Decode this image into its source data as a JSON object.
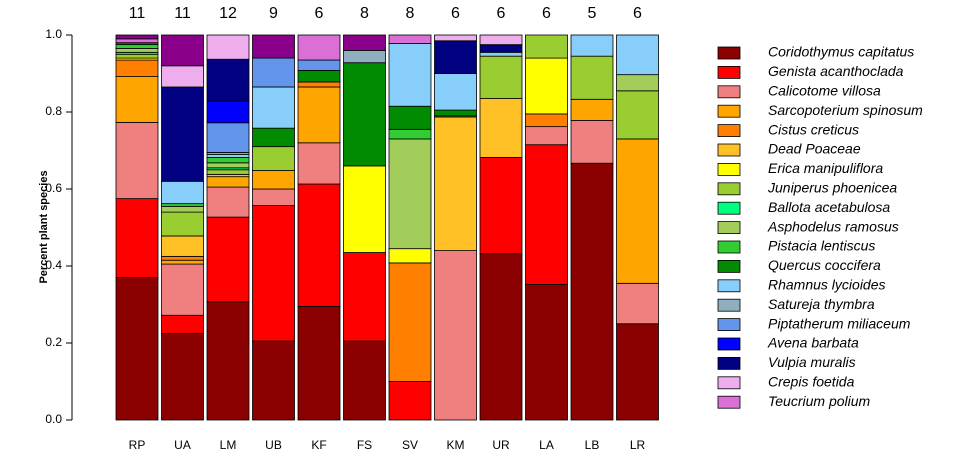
{
  "chart_data": {
    "type": "stacked_bar",
    "ylabel": "Percent plant species",
    "categories": [
      "RP",
      "UA",
      "LM",
      "UB",
      "KF",
      "FS",
      "SV",
      "KM",
      "UR",
      "LA",
      "LB",
      "LR"
    ],
    "top_labels": [
      "11",
      "11",
      "12",
      "9",
      "6",
      "8",
      "8",
      "6",
      "6",
      "6",
      "5",
      "6"
    ],
    "ylim": [
      0,
      1
    ],
    "yticks": [
      {
        "value": 0,
        "label": "0.0"
      },
      0.2,
      0.4,
      0.6,
      0.8,
      {
        "value": 1,
        "label": "1.0"
      }
    ],
    "series": [
      {
        "name": "Coridothymus capitatus",
        "color": "#8B0000",
        "values": [
          0.37,
          0.225,
          0.307,
          0.205,
          0.295,
          0.205,
          0,
          0,
          0.432,
          0.352,
          0.667,
          0.25
        ]
      },
      {
        "name": "Genista acanthoclada",
        "color": "#FF0000",
        "values": [
          0.205,
          0.047,
          0.22,
          0.352,
          0.318,
          0.23,
          0.1,
          0,
          0.25,
          0.363,
          0,
          0
        ]
      },
      {
        "name": "Calicotome villosa",
        "color": "#F08080",
        "values": [
          0.198,
          0.133,
          0.078,
          0.043,
          0.107,
          0,
          0,
          0.44,
          0,
          0.047,
          0.111,
          0.105
        ]
      },
      {
        "name": "Sarcopoterium spinosum",
        "color": "#FFA500",
        "values": [
          0.119,
          0.01,
          0.027,
          0.048,
          0.145,
          0,
          0,
          0,
          0,
          0,
          0.055,
          0.375
        ]
      },
      {
        "name": "Cistus creticus",
        "color": "#FF7F00",
        "values": [
          0.043,
          0.01,
          0,
          0,
          0.013,
          0,
          0.308,
          0,
          0,
          0.033,
          0,
          0
        ]
      },
      {
        "name": "Dead Poaceae",
        "color": "#FFC125",
        "values": [
          0,
          0.053,
          0.006,
          0,
          0,
          0,
          0,
          0.347,
          0.153,
          0,
          0,
          0
        ]
      },
      {
        "name": "Erica manipuliflora",
        "color": "#FFFF00",
        "values": [
          0.005,
          0,
          0,
          0,
          0,
          0.225,
          0.037,
          0,
          0,
          0.145,
          0,
          0
        ]
      },
      {
        "name": "Juniperus phoenicea",
        "color": "#9ACD32",
        "values": [
          0.01,
          0.062,
          0.012,
          0.062,
          0,
          0,
          0,
          0.003,
          0.11,
          0.06,
          0.112,
          0.125
        ]
      },
      {
        "name": "Ballota acetabulosa",
        "color": "#00FF7F",
        "values": [
          0.005,
          0,
          0.005,
          0,
          0,
          0,
          0,
          0,
          0,
          0,
          0,
          0
        ]
      },
      {
        "name": "Asphodelus ramosus",
        "color": "#A2CD5A",
        "values": [
          0.01,
          0.015,
          0.013,
          0,
          0,
          0,
          0.285,
          0,
          0,
          0,
          0,
          0.042
        ]
      },
      {
        "name": "Pistacia lentiscus",
        "color": "#32CD32",
        "values": [
          0.01,
          0.007,
          0.014,
          0,
          0,
          0,
          0.025,
          0,
          0,
          0,
          0,
          0
        ]
      },
      {
        "name": "Quercus coccifera",
        "color": "#008B00",
        "values": [
          0.005,
          0,
          0,
          0.048,
          0.03,
          0.268,
          0.06,
          0.015,
          0,
          0,
          0,
          0
        ]
      },
      {
        "name": "Rhamnus lycioides",
        "color": "#87CEFA",
        "values": [
          0,
          0.058,
          0.008,
          0.107,
          0,
          0,
          0.163,
          0.095,
          0.01,
          0,
          0.055,
          0.103
        ]
      },
      {
        "name": "Satureja thymbra",
        "color": "#8FAFBF",
        "values": [
          0,
          0,
          0.005,
          0,
          0,
          0.032,
          0,
          0,
          0,
          0,
          0,
          0
        ]
      },
      {
        "name": "Piptatherum miliaceum",
        "color": "#6495ED",
        "values": [
          0,
          0,
          0.077,
          0.075,
          0.027,
          0,
          0,
          0,
          0,
          0,
          0,
          0
        ]
      },
      {
        "name": "Avena barbata",
        "color": "#0000FF",
        "values": [
          0,
          0,
          0.056,
          0,
          0,
          0,
          0,
          0,
          0,
          0,
          0,
          0
        ]
      },
      {
        "name": "Vulpia muralis",
        "color": "#000080",
        "values": [
          0,
          0.245,
          0.109,
          0,
          0,
          0,
          0,
          0.085,
          0.02,
          0,
          0,
          0
        ]
      },
      {
        "name": "Crepis foetida",
        "color": "#EEAEEE",
        "values": [
          0,
          0.055,
          0.063,
          0,
          0,
          0,
          0,
          0.015,
          0.025,
          0,
          0,
          0
        ]
      },
      {
        "name": "Teucrium polium",
        "color": "#DA70D6",
        "values": [
          0.01,
          0,
          0,
          0,
          0.065,
          0,
          0.022,
          0,
          0,
          0,
          0,
          0
        ]
      },
      {
        "name": null,
        "color": "#8B008B",
        "values": [
          0.01,
          0.08,
          0,
          0.06,
          0,
          0.04,
          0,
          0,
          0,
          0,
          0,
          0
        ]
      }
    ]
  }
}
